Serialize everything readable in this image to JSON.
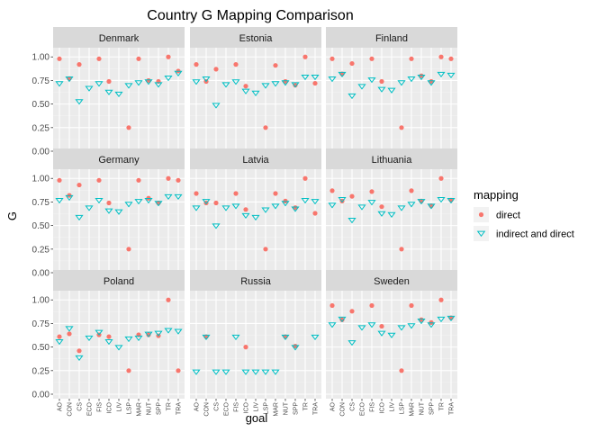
{
  "chart_data": {
    "type": "scatter",
    "title": "Country G Mapping Comparison",
    "xlabel": "goal",
    "ylabel": "G",
    "ylim": [
      0,
      1.05
    ],
    "yticks": [
      "0.00",
      "0.25",
      "0.50",
      "0.75",
      "1.00"
    ],
    "categories": [
      "AO",
      "CON",
      "CS",
      "ECO",
      "FIS",
      "ICO",
      "LIV",
      "LSP",
      "MAR",
      "NUT",
      "SPP",
      "TR",
      "TRA"
    ],
    "legend": {
      "title": "mapping",
      "position": "right",
      "entries": [
        {
          "name": "direct",
          "color": "#F8766D",
          "shape": "circle"
        },
        {
          "name": "indirect and direct",
          "color": "#00BFC4",
          "shape": "triangle-down"
        }
      ]
    },
    "grid": true,
    "panels": [
      {
        "name": "Denmark",
        "direct": [
          0.98,
          0.77,
          0.92,
          null,
          0.98,
          0.74,
          null,
          0.25,
          0.98,
          0.75,
          0.74,
          1.0,
          0.85
        ],
        "indirect_and_direct": [
          0.72,
          0.77,
          0.53,
          0.67,
          0.72,
          0.63,
          0.61,
          0.7,
          0.73,
          0.74,
          0.71,
          0.78,
          0.83
        ]
      },
      {
        "name": "Estonia",
        "direct": [
          0.92,
          0.74,
          0.87,
          null,
          0.92,
          0.69,
          null,
          0.25,
          0.91,
          0.74,
          0.7,
          1.0,
          0.72
        ],
        "indirect_and_direct": [
          0.74,
          0.77,
          0.49,
          0.71,
          0.74,
          0.64,
          0.62,
          0.7,
          0.72,
          0.73,
          0.71,
          0.79,
          0.79
        ]
      },
      {
        "name": "Finland",
        "direct": [
          0.98,
          0.82,
          0.93,
          null,
          0.98,
          0.74,
          null,
          0.25,
          0.98,
          0.8,
          0.74,
          1.0,
          0.98
        ],
        "indirect_and_direct": [
          0.77,
          0.82,
          0.59,
          0.69,
          0.76,
          0.66,
          0.65,
          0.73,
          0.77,
          0.79,
          0.73,
          0.82,
          0.81
        ]
      },
      {
        "name": "Germany",
        "direct": [
          0.98,
          0.82,
          0.93,
          null,
          0.98,
          0.74,
          null,
          0.25,
          0.98,
          0.79,
          0.74,
          1.0,
          0.98
        ],
        "indirect_and_direct": [
          0.77,
          0.8,
          0.59,
          0.69,
          0.77,
          0.66,
          0.65,
          0.73,
          0.76,
          0.77,
          0.74,
          0.81,
          0.81
        ]
      },
      {
        "name": "Latvia",
        "direct": [
          0.84,
          0.74,
          0.74,
          null,
          0.84,
          0.67,
          null,
          0.25,
          0.84,
          0.76,
          0.69,
          1.0,
          0.63
        ],
        "indirect_and_direct": [
          0.69,
          0.76,
          0.5,
          0.69,
          0.71,
          0.61,
          0.59,
          0.67,
          0.71,
          0.74,
          0.68,
          0.77,
          0.76
        ]
      },
      {
        "name": "Lithuania",
        "direct": [
          0.87,
          0.76,
          0.81,
          null,
          0.86,
          0.7,
          null,
          0.25,
          0.87,
          0.76,
          0.71,
          1.0,
          0.77
        ],
        "indirect_and_direct": [
          0.72,
          0.78,
          0.56,
          0.7,
          0.75,
          0.63,
          0.62,
          0.69,
          0.73,
          0.76,
          0.71,
          0.78,
          0.77
        ]
      },
      {
        "name": "Poland",
        "direct": [
          0.61,
          0.64,
          0.46,
          null,
          0.63,
          0.61,
          null,
          0.25,
          0.63,
          0.63,
          0.62,
          1.0,
          0.25
        ],
        "indirect_and_direct": [
          0.56,
          0.7,
          0.39,
          0.6,
          0.66,
          0.56,
          0.5,
          0.59,
          0.6,
          0.64,
          0.65,
          0.68,
          0.67
        ]
      },
      {
        "name": "Russia",
        "direct": [
          null,
          0.61,
          null,
          null,
          null,
          0.5,
          null,
          null,
          null,
          0.61,
          0.51,
          null,
          null
        ],
        "indirect_and_direct": [
          0.24,
          0.61,
          0.24,
          0.24,
          0.61,
          0.24,
          0.24,
          0.24,
          0.24,
          0.61,
          0.5,
          null,
          0.61
        ]
      },
      {
        "name": "Sweden",
        "direct": [
          0.94,
          0.79,
          0.88,
          null,
          0.94,
          0.72,
          null,
          0.25,
          0.94,
          0.79,
          0.76,
          1.0,
          0.81
        ],
        "indirect_and_direct": [
          0.74,
          0.8,
          0.55,
          0.71,
          0.74,
          0.65,
          0.63,
          0.71,
          0.73,
          0.78,
          0.74,
          0.8,
          0.81
        ]
      }
    ]
  },
  "colors": {
    "panel_bg": "#EBEBEB",
    "strip_bg": "#D9D9D9",
    "grid_major": "#FFFFFF",
    "grid_minor": "#F2F2F2",
    "direct": "#F8766D",
    "indirect": "#00BFC4"
  }
}
